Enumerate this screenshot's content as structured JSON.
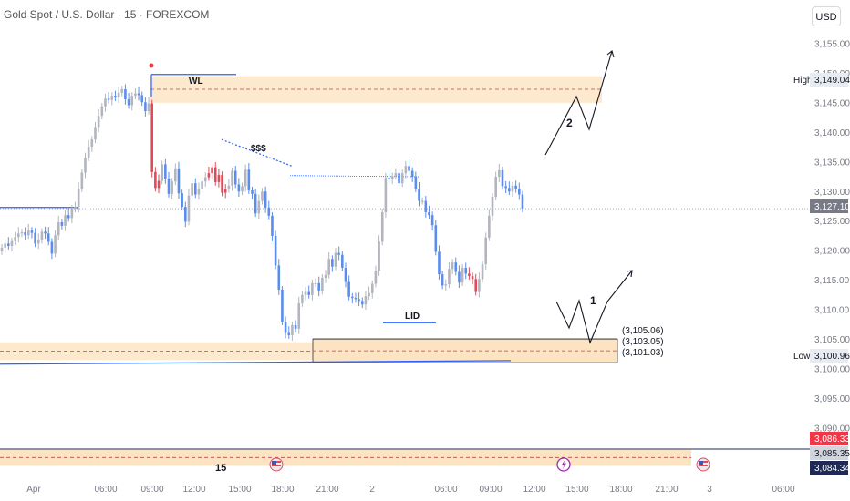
{
  "chart_data": {
    "type": "candlestick",
    "title": "Gold Spot / U.S. Dollar · 15 · FOREXCOM",
    "currency": "USD",
    "y_axis": {
      "ticks": [
        "3,155.00",
        "3,150.00",
        "3,145.00",
        "3,140.00",
        "3,135.00",
        "3,130.00",
        "3,125.00",
        "3,120.00",
        "3,115.00",
        "3,110.00",
        "3,105.00",
        "3,100.00",
        "3,095.00",
        "3,090.00"
      ],
      "tick_values": [
        3155,
        3150,
        3145,
        3140,
        3135,
        3130,
        3125,
        3120,
        3115,
        3110,
        3105,
        3100,
        3095,
        3090
      ]
    },
    "x_axis": {
      "labels": [
        "Apr",
        "06:00",
        "09:00",
        "12:00",
        "15:00",
        "18:00",
        "21:00",
        "2",
        "06:00",
        "09:00",
        "12:00",
        "15:00",
        "18:00",
        "21:00",
        "3",
        "06:00"
      ]
    },
    "price_labels": {
      "high": {
        "label": "High",
        "value": "3,149.04",
        "value_num": 3149.04
      },
      "low": {
        "label": "Low",
        "value": "3,100.96",
        "value_num": 3100.96
      },
      "current": {
        "value": "3,127.10",
        "value_num": 3127.1
      },
      "red": {
        "value": "3,086.33",
        "value_num": 3086.33
      },
      "gray": {
        "value": "3,085.35",
        "value_num": 3085.35
      },
      "navy": {
        "value": "3,084.34",
        "value_num": 3084.34
      }
    },
    "zones": [
      {
        "name": "upper-zone",
        "from": 3145,
        "to": 3149.5
      },
      {
        "name": "lower-zone-left",
        "from": 3101.5,
        "to": 3104.5
      },
      {
        "name": "lower-zone-right",
        "from": 3101.03,
        "to": 3105.06
      },
      {
        "name": "bottom-zone",
        "from": 3083.6,
        "to": 3086.3
      }
    ],
    "zone_levels": [
      "(3,105.06)",
      "(3,103.05)",
      "(3,101.03)"
    ],
    "zone_level_values": [
      3105.06,
      3103.05,
      3101.03
    ],
    "annotations": {
      "wl": "WL",
      "sss": "$$$",
      "lid": "LID",
      "path1": "1",
      "path2": "2",
      "bottom_num": "15"
    },
    "closes": [
      3120.5,
      3121.2,
      3120.8,
      3121.6,
      3122.3,
      3122.9,
      3123.1,
      3122.6,
      3123.4,
      3123.0,
      3121.2,
      3121.8,
      3123.2,
      3122.9,
      3121.5,
      3119.5,
      3122.6,
      3124.8,
      3124.2,
      3126.0,
      3125.5,
      3127.1,
      3127.4,
      3130.5,
      3133.2,
      3135.7,
      3137.6,
      3138.8,
      3140.9,
      3142.8,
      3144.4,
      3145.7,
      3145.5,
      3146.2,
      3145.9,
      3146.7,
      3147.3,
      3145.6,
      3144.6,
      3146.2,
      3146.6,
      3146.3,
      3145.1,
      3143.6,
      3144.9,
      3133.3,
      3130.6,
      3131.8,
      3134.6,
      3132.2,
      3129.6,
      3131.7,
      3133.9,
      3129.7,
      3127.4,
      3124.9,
      3129.3,
      3131.4,
      3129.5,
      3130.4,
      3131.7,
      3132.4,
      3133.1,
      3134.1,
      3131.6,
      3132.8,
      3129.8,
      3130.4,
      3131.0,
      3133.5,
      3131.2,
      3130.0,
      3130.9,
      3133.7,
      3130.2,
      3129.6,
      3126.3,
      3128.4,
      3130.0,
      3127.3,
      3125.9,
      3122.5,
      3117.5,
      3113.4,
      3108.0,
      3106.1,
      3105.7,
      3107.4,
      3106.8,
      3111.1,
      3112.5,
      3113.0,
      3112.5,
      3114.5,
      3114.5,
      3113.2,
      3115.4,
      3115.9,
      3118.6,
      3117.3,
      3119.6,
      3119.3,
      3117.1,
      3114.7,
      3112.2,
      3112.0,
      3111.8,
      3111.5,
      3110.9,
      3112.3,
      3112.8,
      3114.4,
      3116.6,
      3121.5,
      3126.5,
      3132.3,
      3132.2,
      3132.6,
      3133.1,
      3131.4,
      3133.1,
      3134.3,
      3133.5,
      3132.5,
      3130.5,
      3128.4,
      3128.4,
      3126.5,
      3126.0,
      3124.3,
      3119.8,
      3116.0,
      3114.1,
      3114.3,
      3116.9,
      3118.0,
      3116.4,
      3114.6,
      3117.1,
      3116.1,
      3115.7,
      3115.2,
      3113.0,
      3115.2,
      3117.7,
      3122.2,
      3125.9,
      3129.1,
      3132.5,
      3133.6,
      3130.9,
      3130.6,
      3130.0,
      3131.0,
      3130.4,
      3129.5,
      3127.1
    ]
  }
}
